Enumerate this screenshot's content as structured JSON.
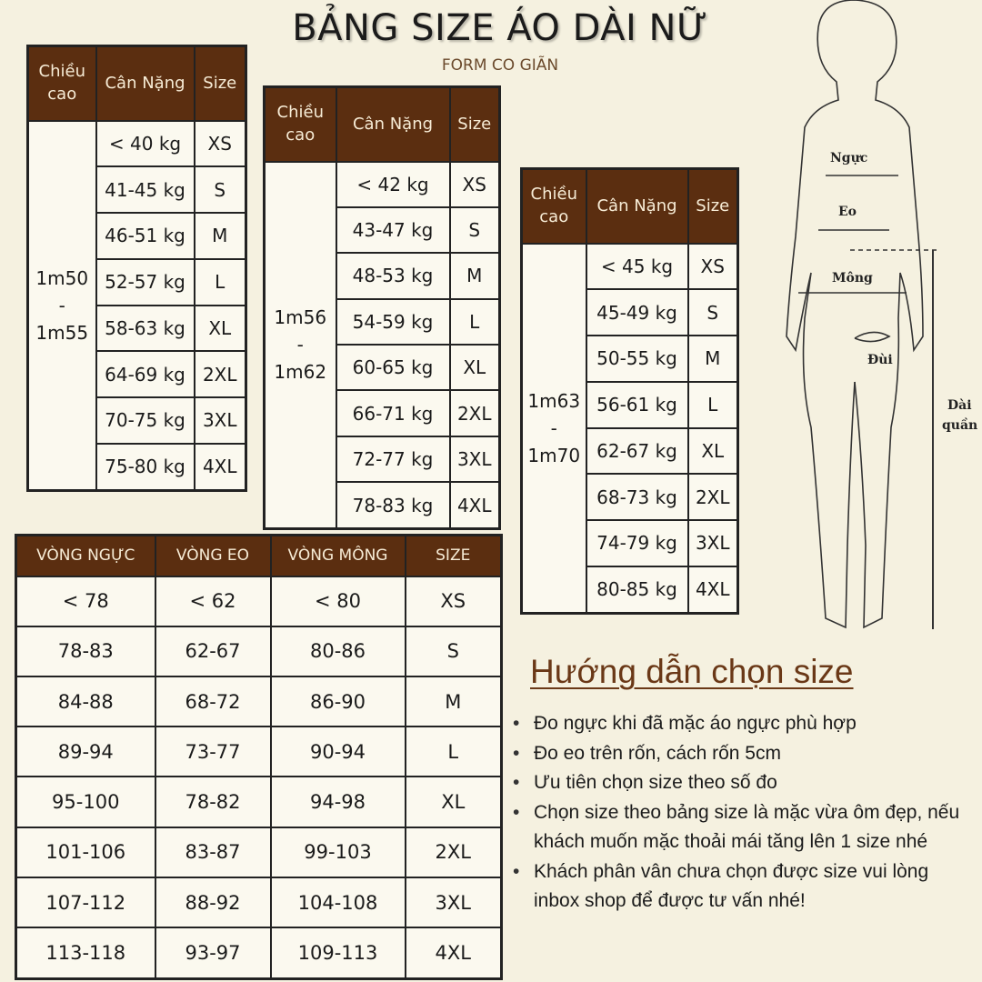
{
  "header": {
    "title": "BẢNG SIZE ÁO DÀI NỮ",
    "subtitle": "FORM CO GIÃN"
  },
  "tables": {
    "height_1": {
      "headers": [
        "Chiều cao",
        "Cân Nặng",
        "Size"
      ],
      "height": "1m50 - 1m55",
      "rows": [
        [
          "< 40 kg",
          "XS"
        ],
        [
          "41-45 kg",
          "S"
        ],
        [
          "46-51 kg",
          "M"
        ],
        [
          "52-57 kg",
          "L"
        ],
        [
          "58-63 kg",
          "XL"
        ],
        [
          "64-69 kg",
          "2XL"
        ],
        [
          "70-75 kg",
          "3XL"
        ],
        [
          "75-80 kg",
          "4XL"
        ]
      ]
    },
    "height_2": {
      "headers": [
        "Chiều cao",
        "Cân Nặng",
        "Size"
      ],
      "height": "1m56 - 1m62",
      "rows": [
        [
          "< 42 kg",
          "XS"
        ],
        [
          "43-47 kg",
          "S"
        ],
        [
          "48-53 kg",
          "M"
        ],
        [
          "54-59 kg",
          "L"
        ],
        [
          "60-65 kg",
          "XL"
        ],
        [
          "66-71 kg",
          "2XL"
        ],
        [
          "72-77 kg",
          "3XL"
        ],
        [
          "78-83 kg",
          "4XL"
        ]
      ]
    },
    "height_3": {
      "headers": [
        "Chiều cao",
        "Cân Nặng",
        "Size"
      ],
      "height": "1m63 - 1m70",
      "rows": [
        [
          "< 45 kg",
          "XS"
        ],
        [
          "45-49 kg",
          "S"
        ],
        [
          "50-55 kg",
          "M"
        ],
        [
          "56-61 kg",
          "L"
        ],
        [
          "62-67 kg",
          "XL"
        ],
        [
          "68-73 kg",
          "2XL"
        ],
        [
          "74-79 kg",
          "3XL"
        ],
        [
          "80-85 kg",
          "4XL"
        ]
      ]
    },
    "measurements": {
      "headers": [
        "VÒNG NGỰC",
        "VÒNG EO",
        "VÒNG MÔNG",
        "SIZE"
      ],
      "rows": [
        [
          "< 78",
          "< 62",
          "< 80",
          "XS"
        ],
        [
          "78-83",
          "62-67",
          "80-86",
          "S"
        ],
        [
          "84-88",
          "68-72",
          "86-90",
          "M"
        ],
        [
          "89-94",
          "73-77",
          "90-94",
          "L"
        ],
        [
          "95-100",
          "78-82",
          "94-98",
          "XL"
        ],
        [
          "101-106",
          "83-87",
          "99-103",
          "2XL"
        ],
        [
          "107-112",
          "88-92",
          "104-108",
          "3XL"
        ],
        [
          "113-118",
          "93-97",
          "109-113",
          "4XL"
        ]
      ]
    }
  },
  "guide": {
    "title": "Hướng dẫn chọn size",
    "items": [
      "Đo ngực khi đã mặc áo ngực phù hợp",
      "Đo eo trên rốn, cách rốn 5cm",
      "Ưu tiên chọn size theo số đo",
      "Chọn size theo bảng size là mặc vừa ôm đẹp, nếu khách muốn mặc thoải mái tăng lên 1 size nhé",
      "Khách phân vân chưa chọn được size vui lòng inbox shop để được tư vấn nhé!"
    ]
  },
  "figure": {
    "labels": {
      "chest": "Ngực",
      "waist": "Eo",
      "hip": "Mông",
      "thigh": "Đùi",
      "pants_length_1": "Dài",
      "pants_length_2": "quần"
    }
  },
  "colors": {
    "header_bg": "#5b2e10",
    "header_text": "#f7ecd6",
    "background": "#f5f1e0",
    "accent": "#6a3817"
  }
}
